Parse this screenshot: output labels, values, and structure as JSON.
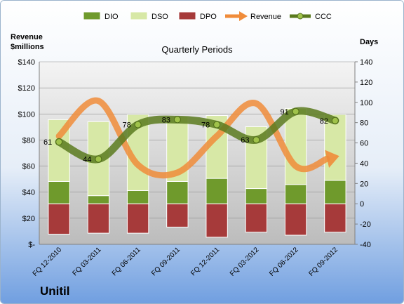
{
  "chart_data": {
    "type": "bar",
    "title": "Quarterly Periods",
    "company": "Unitil",
    "left_axis_label_line1": "Revenue",
    "left_axis_label_line2": "$millions",
    "right_axis_label": "Days",
    "categories": [
      "FQ 12-2010",
      "FQ 03-2011",
      "FQ 06-2011",
      "FQ 09-2011",
      "FQ 12-2011",
      "FQ 03-2012",
      "FQ 06-2012",
      "FQ 09-2012"
    ],
    "left_ylim": [
      0,
      140
    ],
    "right_ylim": [
      -40,
      140
    ],
    "left_ticks": [
      "$-",
      "$20",
      "$40",
      "$60",
      "$80",
      "$100",
      "$120",
      "$140"
    ],
    "right_ticks": [
      "-40",
      "-20",
      "0",
      "20",
      "40",
      "60",
      "80",
      "100",
      "120",
      "140"
    ],
    "series": [
      {
        "name": "DIO",
        "type": "stacked-bar",
        "axis": "days",
        "color": "#6f9a2c",
        "values": [
          22,
          8,
          13,
          22,
          25,
          15,
          19,
          23
        ]
      },
      {
        "name": "DSO",
        "type": "stacked-bar",
        "axis": "days",
        "color": "#d7e8a6",
        "values": [
          61,
          73,
          75,
          64,
          62,
          61,
          75,
          65
        ]
      },
      {
        "name": "DPO",
        "type": "bar-negative",
        "axis": "days",
        "color": "#a63a3a",
        "values": [
          -30,
          -29,
          -29,
          -23,
          -33,
          -28,
          -31,
          -28
        ]
      },
      {
        "name": "Revenue",
        "type": "line",
        "axis": "revenue",
        "color": "#f08c3a",
        "values": [
          83,
          110,
          61,
          55,
          83,
          108,
          60,
          67
        ]
      },
      {
        "name": "CCC",
        "type": "line",
        "axis": "days",
        "color": "#5a7a1e",
        "values": [
          61,
          44,
          78,
          83,
          78,
          63,
          91,
          82
        ],
        "labels": [
          "61",
          "44",
          "78",
          "83",
          "78",
          "63",
          "91",
          "82"
        ]
      }
    ],
    "legend_placement": "top",
    "grid": true
  }
}
